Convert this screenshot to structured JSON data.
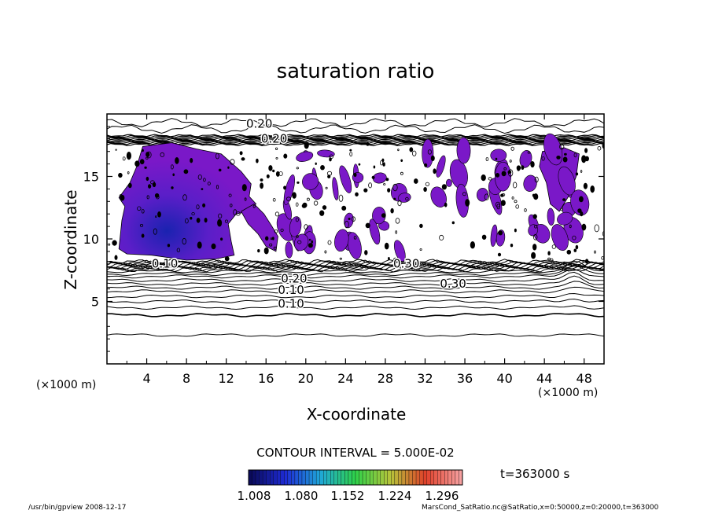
{
  "chart_data": {
    "type": "contour",
    "title": "saturation ratio",
    "xlabel": "X-coordinate",
    "ylabel": "Z-coordinate",
    "x_unit": "(×1000 m)",
    "x_ticks": [
      4,
      8,
      12,
      16,
      20,
      24,
      28,
      32,
      36,
      40,
      44,
      48
    ],
    "y_ticks": [
      5,
      10,
      15
    ],
    "xlim": [
      0,
      50
    ],
    "ylim": [
      0,
      20
    ],
    "contour_interval_label": "CONTOUR INTERVAL = 5.000E-02",
    "contour_labels": [
      "0.20",
      "0.20",
      "0.30",
      "0.20",
      "0.10",
      "0.10",
      "0.10",
      "0.30"
    ],
    "colorbar": {
      "ticks": [
        "1.008",
        "1.080",
        "1.152",
        "1.224",
        "1.296"
      ],
      "colors": [
        "#0a0a5a",
        "#1e2bd6",
        "#1fa7d8",
        "#2fd24a",
        "#b7c43a",
        "#e0402a",
        "#f7a0a0"
      ]
    },
    "time_label": "t=363000 s",
    "colors": {
      "supersaturated": "#7a18c8",
      "supersaturated_core": "#1a22b0",
      "line": "#000000"
    }
  },
  "footer": {
    "left": "/usr/bin/gpview   2008-12-17",
    "right": "MarsCond_SatRatio.nc@SatRatio,x=0:50000,z=0:20000,t=363000"
  }
}
